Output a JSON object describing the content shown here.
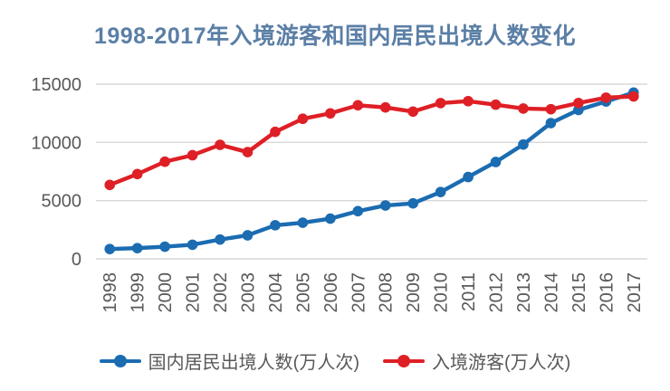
{
  "title": {
    "text": "1998-2017年入境游客和国内居民出境人数变化",
    "color": "#5b7fa6"
  },
  "axis": {
    "tick_color": "#595959",
    "gridline_color": "#d8d8d8"
  },
  "legend": {
    "position": "bottom",
    "items": [
      "国内居民出境人数(万人次)",
      "入境游客(万人次)"
    ]
  },
  "chart_data": {
    "type": "line",
    "title": "1998-2017年入境游客和国内居民出境人数变化",
    "categories": [
      "1998",
      "1999",
      "2000",
      "2001",
      "2002",
      "2003",
      "2004",
      "2005",
      "2006",
      "2007",
      "2008",
      "2009",
      "2010",
      "2011",
      "2012",
      "2013",
      "2014",
      "2015",
      "2016",
      "2017"
    ],
    "series": [
      {
        "name": "国内居民出境人数(万人次)",
        "color": "#1b6cb1",
        "marker": "circle",
        "values": [
          843,
          923,
          1047,
          1213,
          1660,
          2022,
          2885,
          3103,
          3452,
          4095,
          4584,
          4766,
          5739,
          7025,
          8318,
          9819,
          11659,
          12786,
          13513,
          14273
        ]
      },
      {
        "name": "入境游客(万人次)",
        "color": "#de2026",
        "marker": "circle",
        "values": [
          6348,
          7280,
          8344,
          8901,
          9791,
          9166,
          10904,
          12029,
          12494,
          13187,
          13003,
          12648,
          13376,
          13542,
          13241,
          12908,
          12850,
          13382,
          13844,
          13948
        ]
      }
    ],
    "xlabel": "",
    "ylabel": "",
    "ylim": [
      0,
      15000
    ],
    "yticks": [
      0,
      5000,
      10000,
      15000
    ],
    "grid": true,
    "legend_position": "bottom"
  }
}
